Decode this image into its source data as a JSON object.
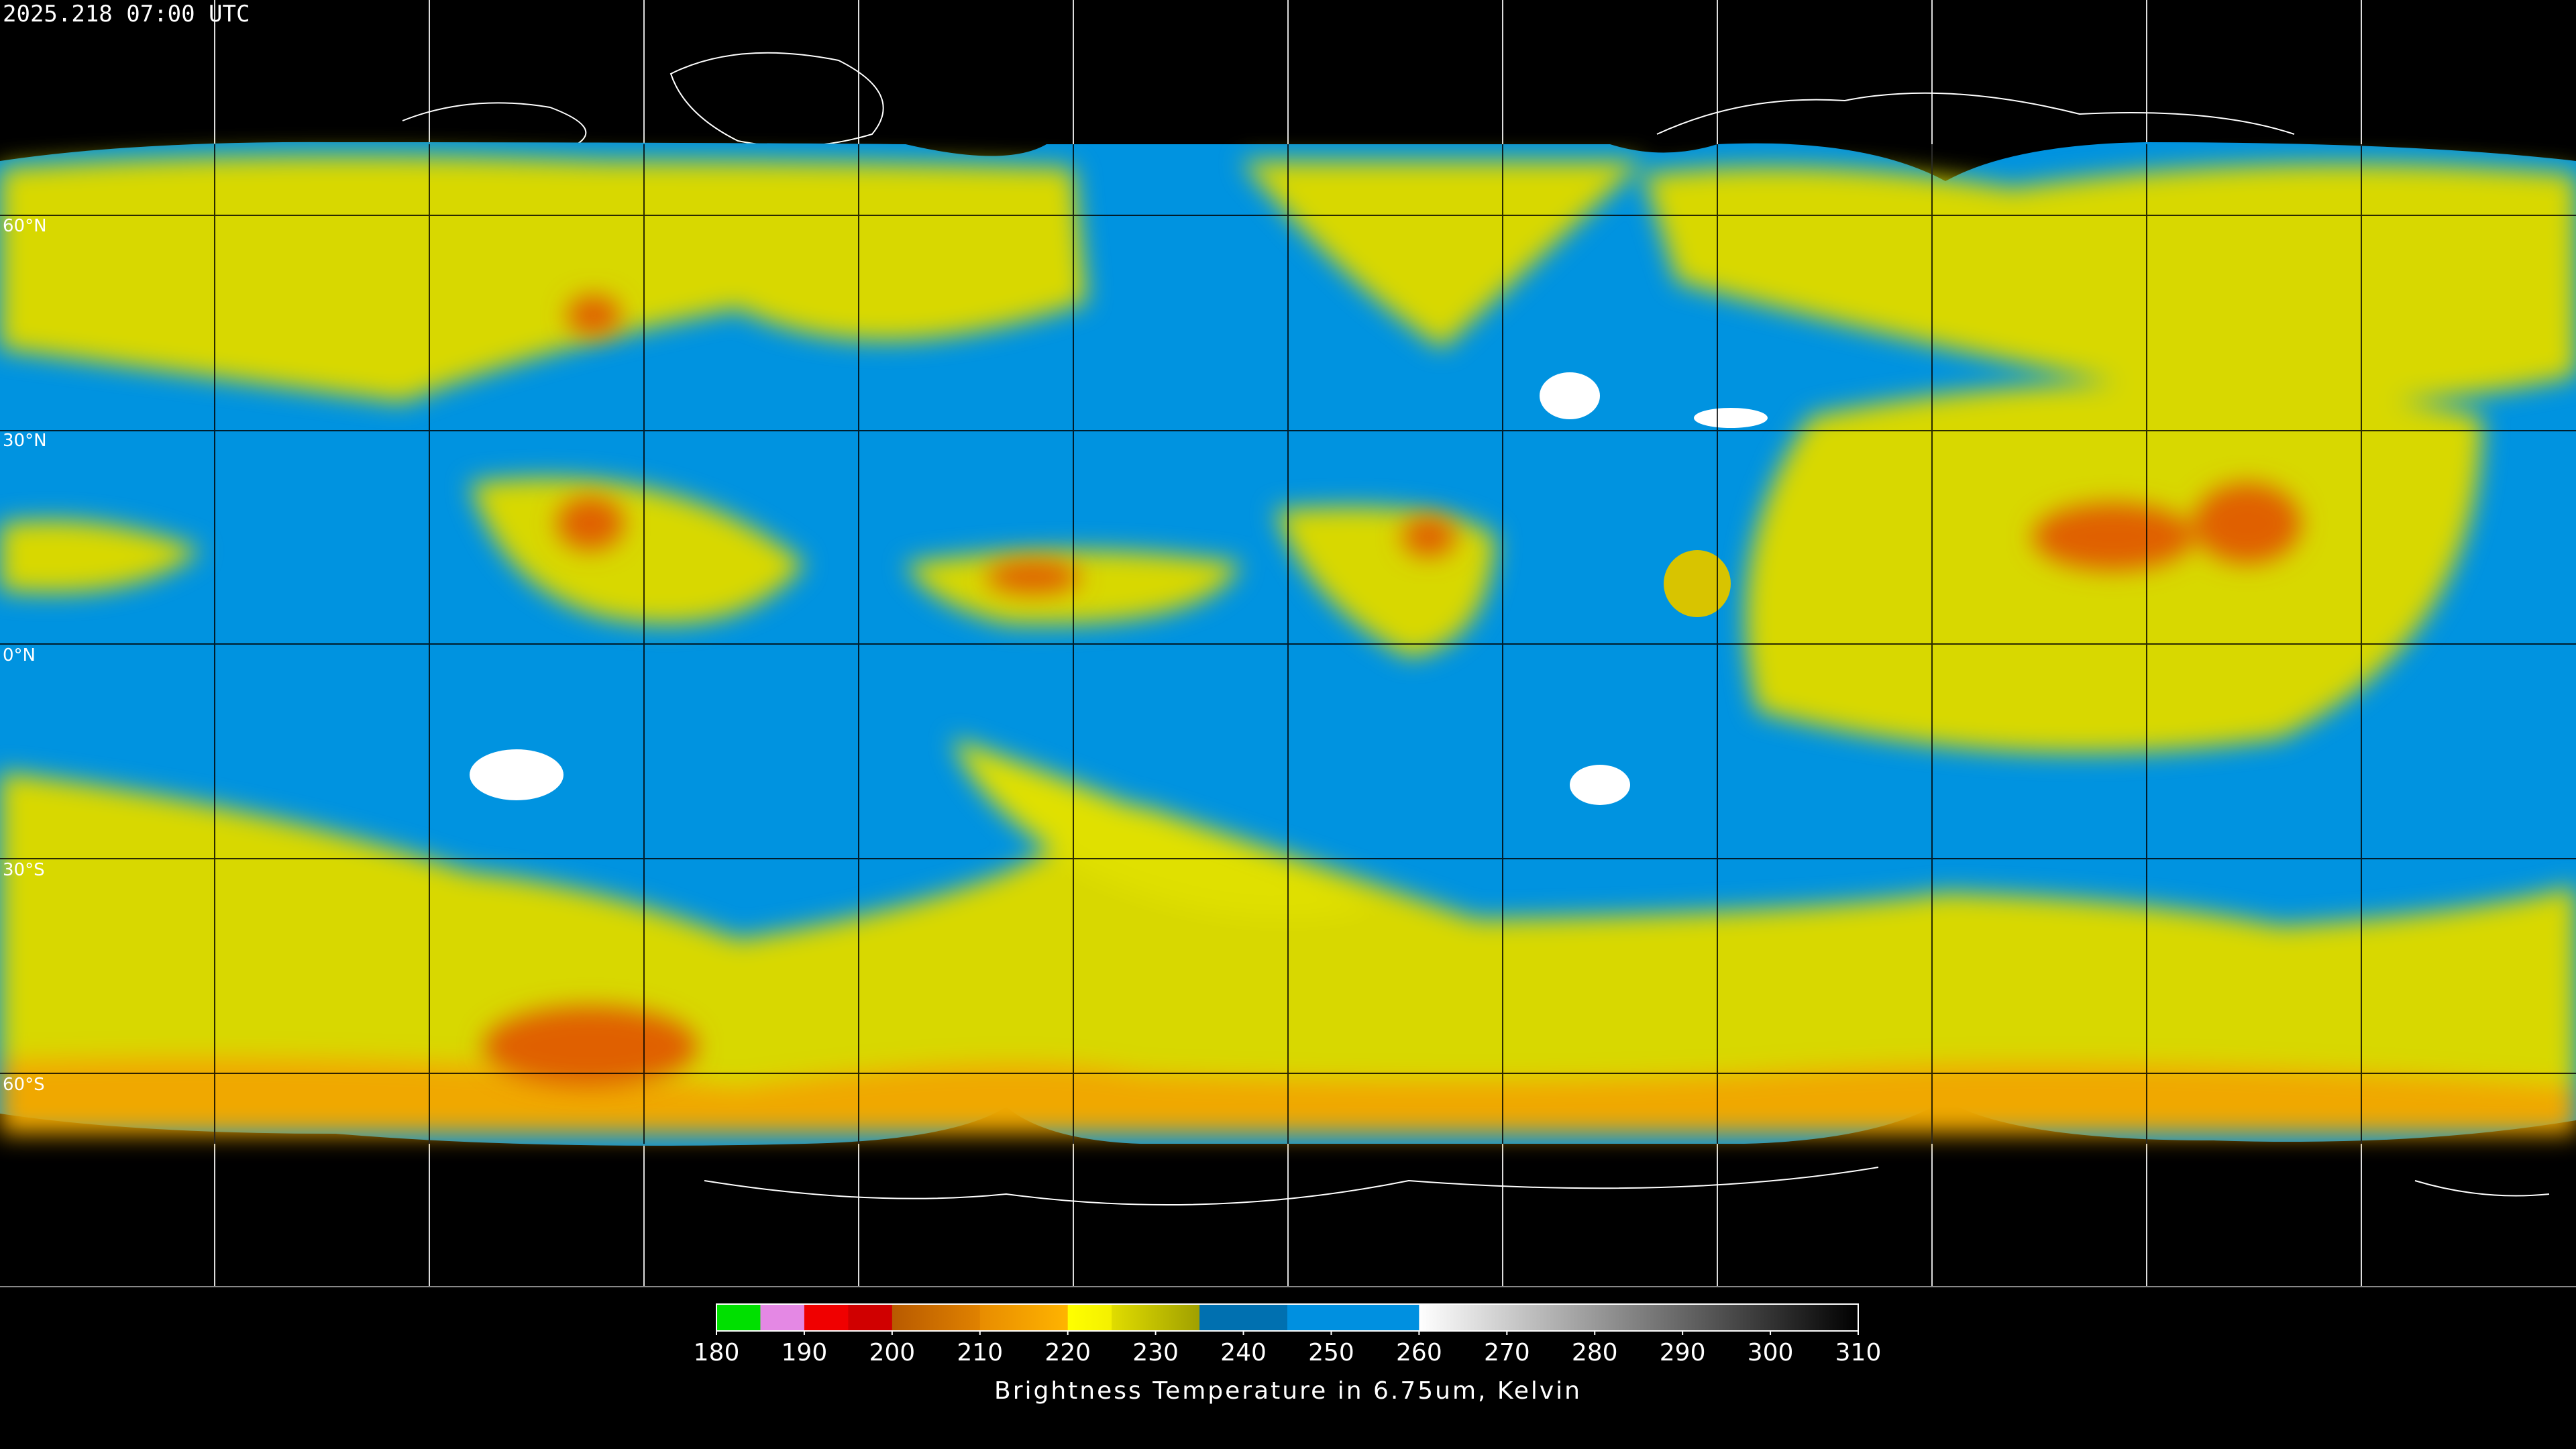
{
  "timestamp": "2025.218 07:00 UTC",
  "latitude_labels": [
    "60°N",
    "30°N",
    "0°N",
    "30°S",
    "60°S"
  ],
  "colorbar": {
    "title": "Brightness Temperature in 6.75um, Kelvin",
    "range": [
      180,
      310
    ],
    "ticks": [
      180,
      190,
      200,
      210,
      220,
      230,
      240,
      250,
      260,
      270,
      280,
      290,
      300,
      310
    ],
    "segments": [
      {
        "from": 180,
        "to": 185,
        "colors": [
          "#00e000",
          "#00e000"
        ]
      },
      {
        "from": 185,
        "to": 190,
        "colors": [
          "#e488e4",
          "#e488e4"
        ]
      },
      {
        "from": 190,
        "to": 195,
        "colors": [
          "#f00000",
          "#f00000"
        ]
      },
      {
        "from": 195,
        "to": 200,
        "colors": [
          "#d00000",
          "#d00000"
        ]
      },
      {
        "from": 200,
        "to": 210,
        "colors": [
          "#b85a00",
          "#e08200"
        ]
      },
      {
        "from": 210,
        "to": 220,
        "colors": [
          "#e88c00",
          "#ffb400"
        ]
      },
      {
        "from": 220,
        "to": 225,
        "colors": [
          "#ffff00",
          "#f4f000"
        ]
      },
      {
        "from": 225,
        "to": 235,
        "colors": [
          "#e0dc00",
          "#a0a000"
        ]
      },
      {
        "from": 235,
        "to": 245,
        "colors": [
          "#0070b0",
          "#0070b0"
        ]
      },
      {
        "from": 245,
        "to": 260,
        "colors": [
          "#0090e0",
          "#0090e0"
        ]
      },
      {
        "from": 260,
        "to": 310,
        "colors": [
          "#ffffff",
          "#000000"
        ]
      }
    ]
  }
}
